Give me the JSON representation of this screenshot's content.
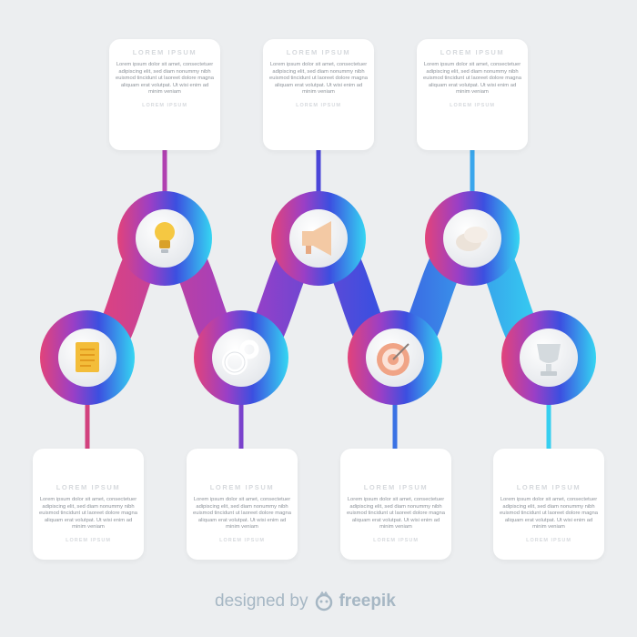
{
  "steps_top": [
    {
      "title": "LOREM IPSUM",
      "body": "Lorem ipsum dolor sit amet, consectetuer adipiscing elit, sed diam nonummy nibh euismod tincidunt ut laoreet dolore magna aliquam erat volutpat. Ut wisi enim ad minim veniam",
      "foot": "LOREM IPSUM",
      "icon": "lightbulb-icon"
    },
    {
      "title": "LOREM IPSUM",
      "body": "Lorem ipsum dolor sit amet, consectetuer adipiscing elit, sed diam nonummy nibh euismod tincidunt ut laoreet dolore magna aliquam erat volutpat. Ut wisi enim ad minim veniam",
      "foot": "LOREM IPSUM",
      "icon": "megaphone-icon"
    },
    {
      "title": "LOREM IPSUM",
      "body": "Lorem ipsum dolor sit amet, consectetuer adipiscing elit, sed diam nonummy nibh euismod tincidunt ut laoreet dolore magna aliquam erat volutpat. Ut wisi enim ad minim veniam",
      "foot": "LOREM IPSUM",
      "icon": "money-icon"
    }
  ],
  "steps_bottom": [
    {
      "title": "LOREM IPSUM",
      "body": "Lorem ipsum dolor sit amet, consectetuer adipiscing elit, sed diam nonummy nibh euismod tincidunt ut laoreet dolore magna aliquam erat volutpat. Ut wisi enim ad minim veniam",
      "foot": "LOREM IPSUM",
      "icon": "document-icon"
    },
    {
      "title": "LOREM IPSUM",
      "body": "Lorem ipsum dolor sit amet, consectetuer adipiscing elit, sed diam nonummy nibh euismod tincidunt ut laoreet dolore magna aliquam erat volutpat. Ut wisi enim ad minim veniam",
      "foot": "LOREM IPSUM",
      "icon": "gears-icon"
    },
    {
      "title": "LOREM IPSUM",
      "body": "Lorem ipsum dolor sit amet, consectetuer adipiscing elit, sed diam nonummy nibh euismod tincidunt ut laoreet dolore magna aliquam erat volutpat. Ut wisi enim ad minim veniam",
      "foot": "LOREM IPSUM",
      "icon": "target-icon"
    },
    {
      "title": "LOREM IPSUM",
      "body": "Lorem ipsum dolor sit amet, consectetuer adipiscing elit, sed diam nonummy nibh euismod tincidunt ut laoreet dolore magna aliquam erat volutpat. Ut wisi enim ad minim veniam",
      "foot": "LOREM IPSUM",
      "icon": "trophy-icon"
    }
  ],
  "colors": {
    "gradient_start": "#e2437a",
    "gradient_mid1": "#9a3fc6",
    "gradient_mid2": "#3c4fe0",
    "gradient_end": "#35d6f2",
    "background": "#eceef0"
  },
  "watermark": {
    "designed_by": "designed by",
    "brand": "freepik"
  }
}
